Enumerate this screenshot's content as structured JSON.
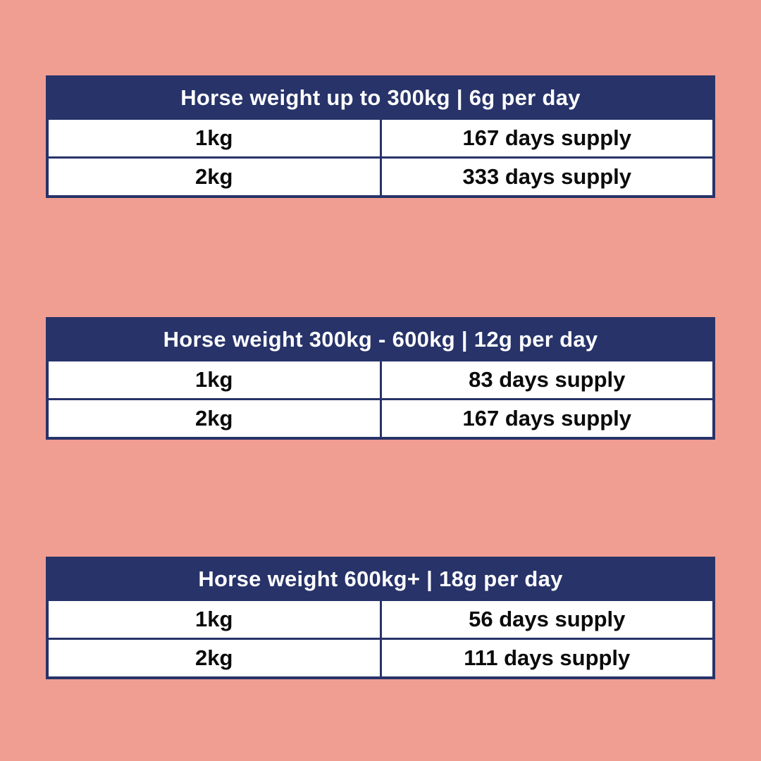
{
  "canvas": {
    "background_color": "#F09D92",
    "accent_navy": "#273369",
    "row_background": "#FFFFFF",
    "header_text_color": "#FFFFFF",
    "body_text_color": "#0A0A0A"
  },
  "chart_data": [
    {
      "type": "table",
      "title": "Horse weight up to 300kg | 6g per day",
      "rows": [
        {
          "amount": "1kg",
          "supply": "167 days supply"
        },
        {
          "amount": "2kg",
          "supply": "333 days supply"
        }
      ]
    },
    {
      "type": "table",
      "title": "Horse weight 300kg - 600kg | 12g per day",
      "rows": [
        {
          "amount": "1kg",
          "supply": "83 days supply"
        },
        {
          "amount": "2kg",
          "supply": "167 days supply"
        }
      ]
    },
    {
      "type": "table",
      "title": "Horse weight 600kg+ | 18g per day",
      "rows": [
        {
          "amount": "1kg",
          "supply": "56 days supply"
        },
        {
          "amount": "2kg",
          "supply": "111 days supply"
        }
      ]
    }
  ]
}
